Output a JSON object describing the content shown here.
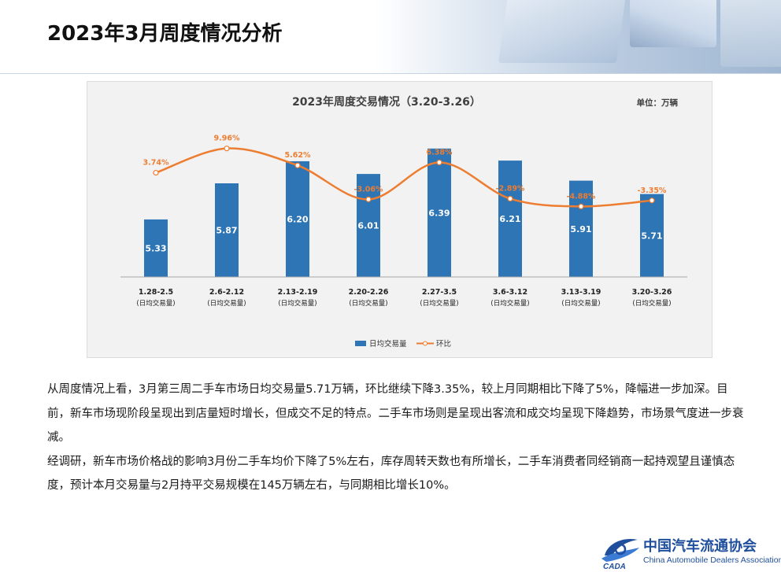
{
  "page": {
    "title": "2023年3月周度情况分析"
  },
  "chart_data": {
    "type": "bar",
    "title": "2023年周度交易情况（3.20-3.26）",
    "unit": "单位：万辆",
    "categories": [
      "1.28-2.5",
      "2.6-2.12",
      "2.13-2.19",
      "2.20-2.26",
      "2.27-3.5",
      "3.6-3.12",
      "3.13-3.19",
      "3.20-3.26"
    ],
    "category_sublabel": "(日均交易量)",
    "series": [
      {
        "name": "日均交易量",
        "type": "bar",
        "values": [
          5.33,
          5.87,
          6.2,
          6.01,
          6.39,
          6.21,
          5.91,
          5.71
        ],
        "color": "#2e75b6"
      },
      {
        "name": "环比",
        "type": "line",
        "values": [
          "3.74%",
          "9.96%",
          "5.62%",
          "-3.06%",
          "6.38%",
          "-2.89%",
          "-4.88%",
          "-3.35%"
        ],
        "color": "#ed7d31",
        "smooth": true
      }
    ],
    "legend_position": "bottom",
    "grid": false
  },
  "body": {
    "para1": "从周度情况上看，3月第三周二手车市场日均交易量5.71万辆，环比继续下降3.35%，较上月同期相比下降了5%，降幅进一步加深。目前，新车市场现阶段呈现出到店量短时增长，但成交不足的特点。二手车市场则是呈现出客流和成交均呈现下降趋势，市场景气度进一步衰减。",
    "para2": "经调研，新车市场价格战的影响3月份二手车均价下降了5%左右，库存周转天数也有所增长，二手车消费者同经销商一起持观望且谨慎态度，预计本月交易量与2月持平交易规模在145万辆左右，与同期相比增长10%。"
  },
  "logo": {
    "cn": "中国汽车流通协会",
    "en": "China Automobile Dealers Association",
    "mark": "CADA"
  }
}
